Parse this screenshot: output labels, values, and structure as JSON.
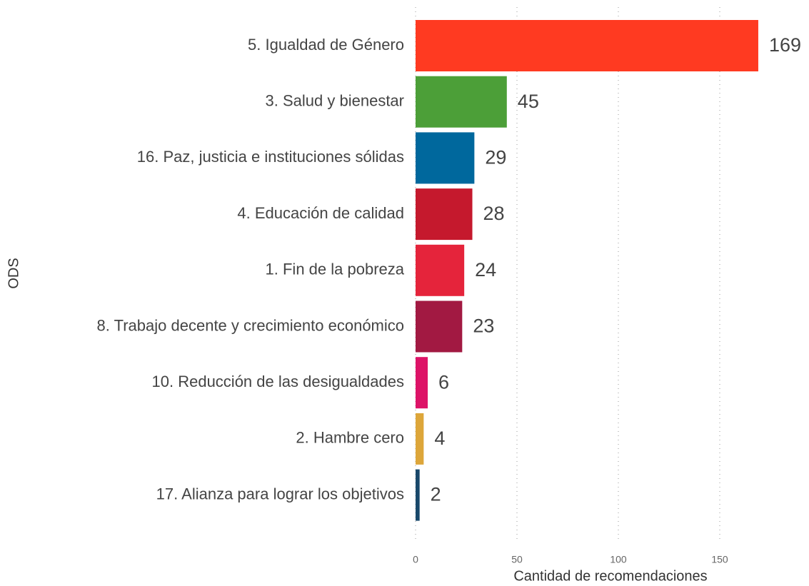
{
  "chart_data": {
    "type": "bar",
    "orientation": "horizontal",
    "categories": [
      "5. Igualdad de Género",
      "3. Salud y bienestar",
      "16. Paz, justicia e instituciones sólidas",
      "4. Educación de calidad",
      "1. Fin de la pobreza",
      "8. Trabajo decente y crecimiento económico",
      "10. Reducción de las desigualdades",
      "2. Hambre cero",
      "17. Alianza para lograr los objetivos"
    ],
    "values": [
      169,
      45,
      29,
      28,
      24,
      23,
      6,
      4,
      2
    ],
    "colors": [
      "#ff3a21",
      "#4c9f38",
      "#00689d",
      "#c5192d",
      "#e5243b",
      "#a21942",
      "#dd1367",
      "#dda63a",
      "#19486a"
    ],
    "xlabel": "Cantidad de recomendaciones",
    "ylabel": "ODS",
    "xlim": [
      0,
      190
    ],
    "xticks": [
      0,
      50,
      100,
      150
    ],
    "grid": true
  }
}
